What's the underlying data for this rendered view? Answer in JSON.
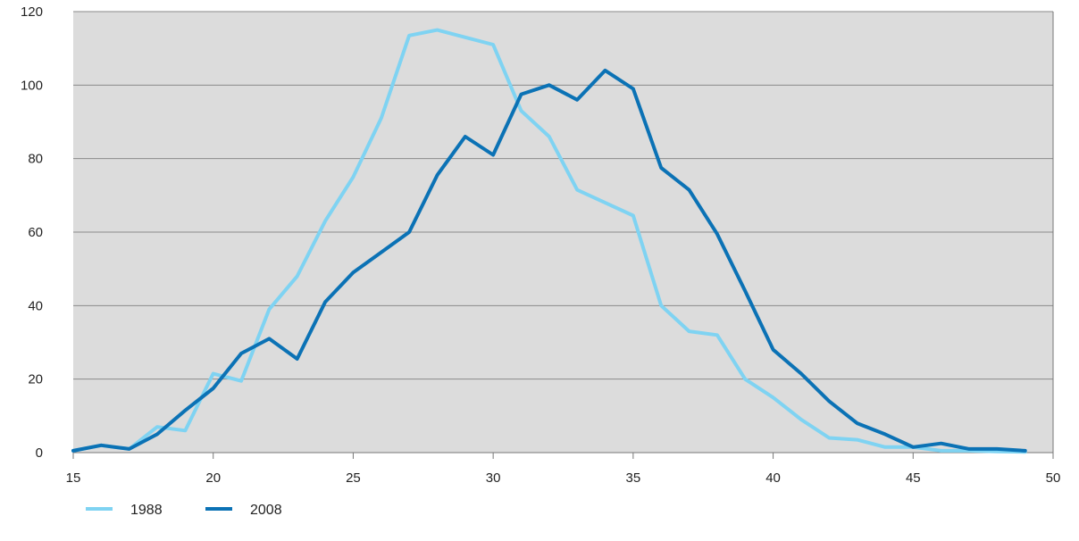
{
  "chart_data": {
    "type": "line",
    "title": "",
    "xlabel": "",
    "ylabel": "",
    "xlim": [
      15,
      50
    ],
    "ylim": [
      0,
      120
    ],
    "x_ticks": [
      15,
      20,
      25,
      30,
      35,
      40,
      45,
      50
    ],
    "y_ticks": [
      0,
      20,
      40,
      60,
      80,
      100,
      120
    ],
    "x_tick_labels": [
      "15",
      "20",
      "25",
      "30",
      "35",
      "40",
      "45",
      "50"
    ],
    "y_tick_labels": [
      "0",
      "20",
      "40",
      "60",
      "80",
      "100",
      "120"
    ],
    "grid": "horizontal",
    "legend_position": "bottom-left",
    "plot_background": "#dcdcdc",
    "x": [
      15,
      16,
      17,
      18,
      19,
      20,
      21,
      22,
      23,
      24,
      25,
      26,
      27,
      28,
      29,
      30,
      31,
      32,
      33,
      34,
      35,
      36,
      37,
      38,
      39,
      40,
      41,
      42,
      43,
      44,
      45,
      46,
      47,
      48,
      49
    ],
    "series": [
      {
        "name": "1988",
        "color": "#7fd3f2",
        "values": [
          0.5,
          2,
          1,
          7,
          6,
          21.5,
          19.5,
          39,
          48,
          63,
          75,
          91,
          113.5,
          115,
          113,
          111,
          93,
          86,
          71.5,
          68,
          64.5,
          40,
          33,
          32,
          20,
          15,
          9,
          4,
          3.5,
          1.5,
          1.5,
          0.5,
          0.5,
          0.3,
          0.2
        ]
      },
      {
        "name": "2008",
        "color": "#0b72b5",
        "values": [
          0.5,
          2,
          1,
          5,
          11.5,
          17.5,
          27,
          31,
          25.5,
          41,
          49,
          54.5,
          60,
          75.5,
          86,
          81,
          97.5,
          100,
          96,
          104,
          99,
          77.5,
          71.5,
          59.5,
          44,
          28,
          21.5,
          14,
          8,
          5,
          1.5,
          2.5,
          1,
          1,
          0.5
        ]
      }
    ]
  }
}
